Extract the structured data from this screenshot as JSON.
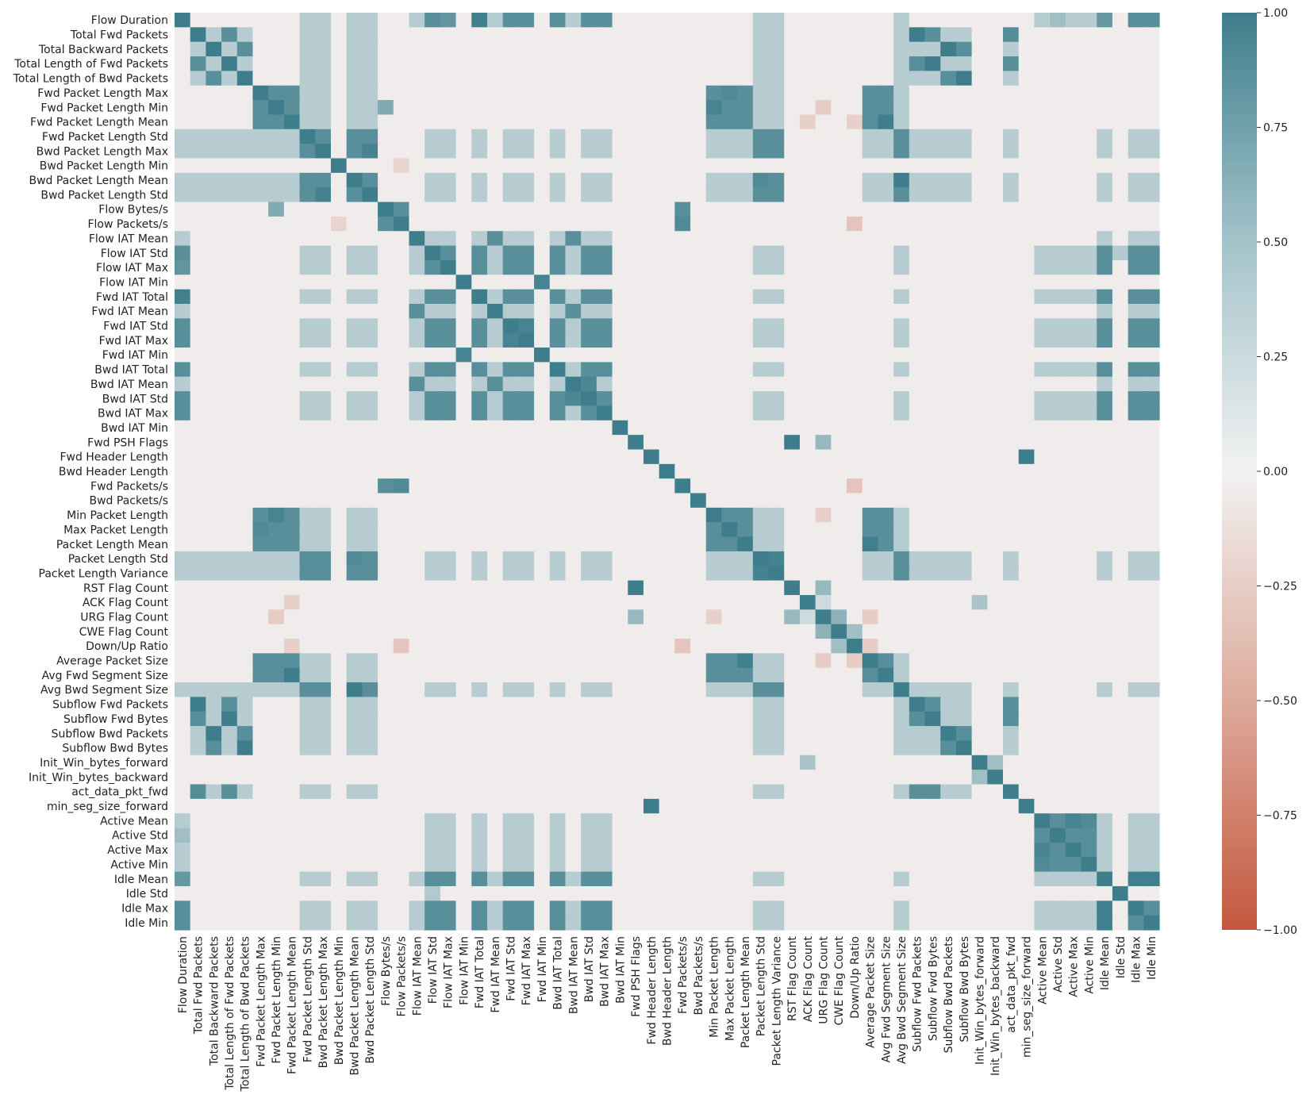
{
  "chart_data": {
    "type": "heatmap",
    "title": "",
    "xlabel": "",
    "ylabel": "",
    "labels": [
      "Flow Duration",
      "Total Fwd Packets",
      "Total Backward Packets",
      "Total Length of Fwd Packets",
      "Total Length of Bwd Packets",
      "Fwd Packet Length Max",
      "Fwd Packet Length Min",
      "Fwd Packet Length Mean",
      "Fwd Packet Length Std",
      "Bwd Packet Length Max",
      "Bwd Packet Length Min",
      "Bwd Packet Length Mean",
      "Bwd Packet Length Std",
      "Flow Bytes/s",
      "Flow Packets/s",
      "Flow IAT Mean",
      "Flow IAT Std",
      "Flow IAT Max",
      "Flow IAT Min",
      "Fwd IAT Total",
      "Fwd IAT Mean",
      "Fwd IAT Std",
      "Fwd IAT Max",
      "Fwd IAT Min",
      "Bwd IAT Total",
      "Bwd IAT Mean",
      "Bwd IAT Std",
      "Bwd IAT Max",
      "Bwd IAT Min",
      "Fwd PSH Flags",
      "Fwd Header Length",
      "Bwd Header Length",
      "Fwd Packets/s",
      "Bwd Packets/s",
      "Min Packet Length",
      "Max Packet Length",
      "Packet Length Mean",
      "Packet Length Std",
      "Packet Length Variance",
      "RST Flag Count",
      "ACK Flag Count",
      "URG Flag Count",
      "CWE Flag Count",
      "Down/Up Ratio",
      "Average Packet Size",
      "Avg Fwd Segment Size",
      "Avg Bwd Segment Size",
      "Subflow Fwd Packets",
      "Subflow Fwd Bytes",
      "Subflow Bwd Packets",
      "Subflow Bwd Bytes",
      "Init_Win_bytes_forward",
      "Init_Win_bytes_backward",
      "act_data_pkt_fwd",
      "min_seg_size_forward",
      "Active Mean",
      "Active Std",
      "Active Max",
      "Active Min",
      "Idle Mean",
      "Idle Std",
      "Idle Max",
      "Idle Min"
    ],
    "groups": [
      [
        1,
        3,
        47,
        48,
        53
      ],
      [
        2,
        4,
        49,
        50
      ],
      [
        5,
        6,
        7,
        34,
        35,
        36,
        44,
        45
      ],
      [
        8,
        9,
        11,
        12,
        37,
        38,
        46
      ],
      [
        0,
        16,
        17,
        19,
        21,
        22,
        24,
        26,
        27,
        59,
        61,
        62
      ],
      [
        15,
        20,
        25
      ],
      [
        18,
        23
      ],
      [
        13,
        14,
        32
      ],
      [
        55,
        56,
        57,
        58
      ],
      [
        29,
        39
      ],
      [
        30,
        54
      ]
    ],
    "group_corr": 0.85,
    "cross_group_corr": 0.18,
    "background_corr": -0.04,
    "diagonal": 1.0,
    "pairs": [
      {
        "a": "Flow Duration",
        "b": "Fwd IAT Total",
        "value": 0.98
      },
      {
        "a": "Flow Duration",
        "b": "Flow IAT Max",
        "value": 0.8
      },
      {
        "a": "Flow Duration",
        "b": "Idle Mean",
        "value": 0.78
      },
      {
        "a": "Total Fwd Packets",
        "b": "Subflow Fwd Packets",
        "value": 1.0
      },
      {
        "a": "Total Fwd Packets",
        "b": "act_data_pkt_fwd",
        "value": 0.88
      },
      {
        "a": "Total Length of Fwd Packets",
        "b": "Subflow Fwd Bytes",
        "value": 1.0
      },
      {
        "a": "Total Length of Bwd Packets",
        "b": "Subflow Bwd Bytes",
        "value": 1.0
      },
      {
        "a": "Total Backward Packets",
        "b": "Subflow Bwd Packets",
        "value": 1.0
      },
      {
        "a": "Fwd Packet Length Mean",
        "b": "Avg Fwd Segment Size",
        "value": 1.0
      },
      {
        "a": "Fwd Packet Length Min",
        "b": "Min Packet Length",
        "value": 0.95
      },
      {
        "a": "Bwd Packet Length Mean",
        "b": "Avg Bwd Segment Size",
        "value": 1.0
      },
      {
        "a": "Packet Length Mean",
        "b": "Average Packet Size",
        "value": 0.99
      },
      {
        "a": "Packet Length Std",
        "b": "Packet Length Variance",
        "value": 0.96
      },
      {
        "a": "Flow Packets/s",
        "b": "Fwd Packets/s",
        "value": 0.9
      },
      {
        "a": "Flow Bytes/s",
        "b": "Fwd Packet Length Min",
        "value": 0.62
      },
      {
        "a": "Flow IAT Min",
        "b": "Fwd IAT Min",
        "value": 0.95
      },
      {
        "a": "Fwd PSH Flags",
        "b": "RST Flag Count",
        "value": 1.0
      },
      {
        "a": "Fwd Header Length",
        "b": "min_seg_size_forward",
        "value": 1.0
      },
      {
        "a": "Active Mean",
        "b": "Active Max",
        "value": 0.95
      },
      {
        "a": "Active Mean",
        "b": "Active Min",
        "value": 0.9
      },
      {
        "a": "Idle Mean",
        "b": "Idle Max",
        "value": 0.99
      },
      {
        "a": "Idle Mean",
        "b": "Idle Min",
        "value": 0.99
      },
      {
        "a": "Bwd IAT Mean",
        "b": "Bwd IAT Std",
        "value": 0.92
      },
      {
        "a": "Fwd IAT Std",
        "b": "Fwd IAT Max",
        "value": 0.95
      },
      {
        "a": "Down/Up Ratio",
        "b": "Flow Packets/s",
        "value": -0.3
      },
      {
        "a": "Down/Up Ratio",
        "b": "Fwd Packets/s",
        "value": -0.3
      },
      {
        "a": "Fwd Packet Length Min",
        "b": "URG Flag Count",
        "value": -0.25
      },
      {
        "a": "Fwd Packet Length Mean",
        "b": "Down/Up Ratio",
        "value": -0.22
      },
      {
        "a": "Bwd Packet Length Min",
        "b": "Flow Packets/s",
        "value": -0.2
      },
      {
        "a": "Average Packet Size",
        "b": "URG Flag Count",
        "value": -0.25
      },
      {
        "a": "Average Packet Size",
        "b": "Down/Up Ratio",
        "value": -0.25
      },
      {
        "a": "Min Packet Length",
        "b": "URG Flag Count",
        "value": -0.22
      },
      {
        "a": "ACK Flag Count",
        "b": "Fwd Packet Length Mean",
        "value": -0.22
      },
      {
        "a": "ACK Flag Count",
        "b": "URG Flag Count",
        "value": 0.2
      },
      {
        "a": "URG Flag Count",
        "b": "CWE Flag Count",
        "value": 0.55
      },
      {
        "a": "CWE Flag Count",
        "b": "Down/Up Ratio",
        "value": 0.45
      },
      {
        "a": "Fwd PSH Flags",
        "b": "URG Flag Count",
        "value": 0.5
      },
      {
        "a": "RST Flag Count",
        "b": "URG Flag Count",
        "value": 0.5
      },
      {
        "a": "Init_Win_bytes_forward",
        "b": "Init_Win_bytes_backward",
        "value": 0.45
      },
      {
        "a": "Init_Win_bytes_forward",
        "b": "ACK Flag Count",
        "value": 0.4
      },
      {
        "a": "Bwd Packet Length Max",
        "b": "Bwd Packet Length Std",
        "value": 0.96
      },
      {
        "a": "Bwd Packet Length Mean",
        "b": "Packet Length Std",
        "value": 0.9
      },
      {
        "a": "Max Packet Length",
        "b": "Fwd Packet Length Max",
        "value": 0.9
      },
      {
        "a": "Active Std",
        "b": "Flow Duration",
        "value": 0.45
      },
      {
        "a": "Idle Std",
        "b": "Flow IAT Std",
        "value": 0.35
      }
    ],
    "colormap": {
      "negative": "#c4573d",
      "zero": "#f2f2f2",
      "positive": "#3e7e8c"
    },
    "colorbar": {
      "min": -1.0,
      "max": 1.0,
      "ticks": [
        "1.00",
        "0.75",
        "0.50",
        "0.25",
        "0.00",
        "−0.25",
        "−0.50",
        "−0.75",
        "−1.00"
      ]
    },
    "grid": false
  }
}
